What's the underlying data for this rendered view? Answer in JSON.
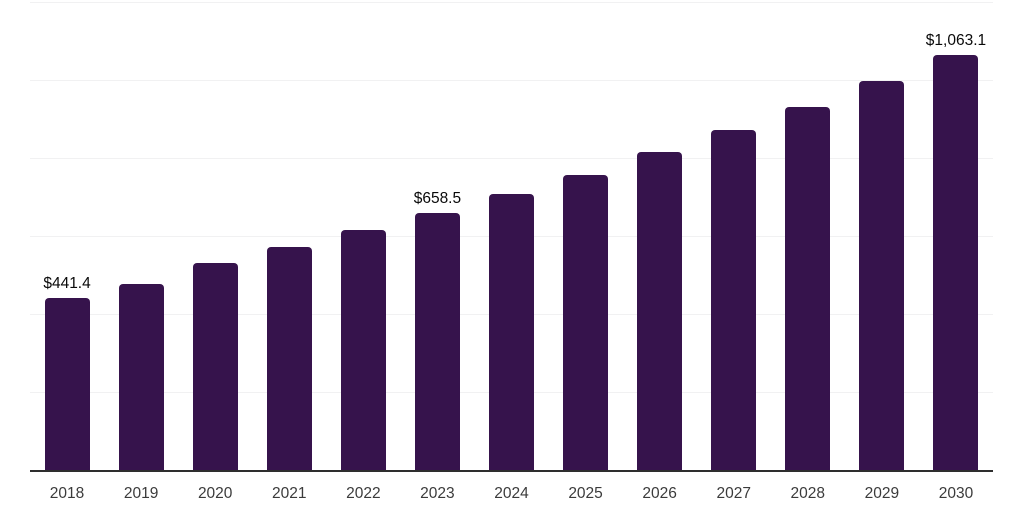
{
  "chart_data": {
    "type": "bar",
    "categories": [
      "2018",
      "2019",
      "2020",
      "2021",
      "2022",
      "2023",
      "2024",
      "2025",
      "2026",
      "2027",
      "2028",
      "2029",
      "2030"
    ],
    "values": [
      441.4,
      478,
      532,
      572,
      616,
      658.5,
      707,
      757,
      816,
      872,
      931,
      997,
      1063.1
    ],
    "data_labels": [
      "$441.4",
      "",
      "",
      "",
      "",
      "$658.5",
      "",
      "",
      "",
      "",
      "",
      "",
      "$1,063.1"
    ],
    "ylim": [
      0,
      1200
    ],
    "gridline_step": 200,
    "grid": true,
    "legend": "none",
    "title": "",
    "xlabel": "",
    "ylabel": "",
    "colors": {
      "bar_fill": "#36134C",
      "gridline": "#f1f1f2",
      "axis_line": "#2e2e2e",
      "tick_label": "#3b3b3b",
      "data_label": "#0a0a0a",
      "background": "#ffffff"
    }
  }
}
